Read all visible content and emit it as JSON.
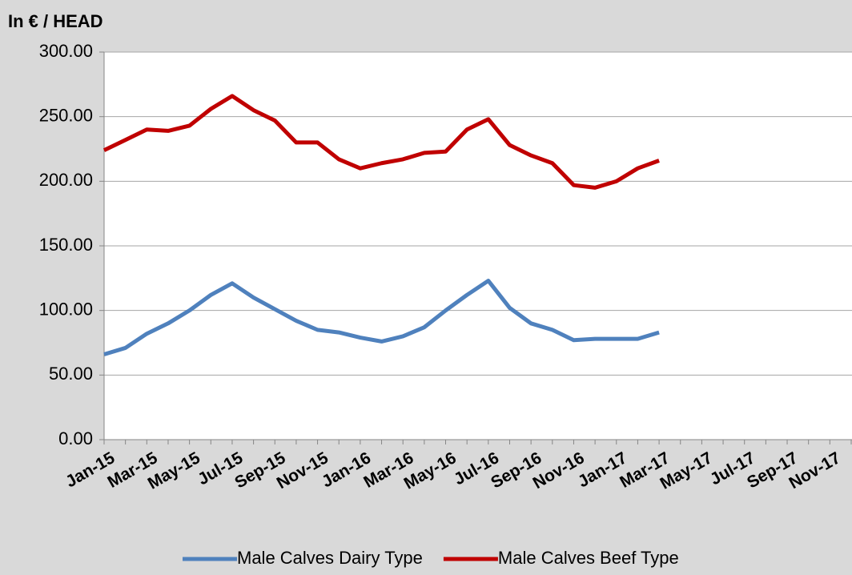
{
  "chart_data": {
    "type": "line",
    "title": "In € / HEAD",
    "categories": [
      "Jan-15",
      null,
      "Mar-15",
      null,
      "May-15",
      null,
      "Jul-15",
      null,
      "Sep-15",
      null,
      "Nov-15",
      null,
      "Jan-16",
      null,
      "Mar-16",
      null,
      "May-16",
      null,
      "Jul-16",
      null,
      "Sep-16",
      null,
      "Nov-16",
      null,
      "Jan-17",
      null,
      "Mar-17",
      null,
      "May-17",
      null,
      "Jul-17",
      null,
      "Sep-17",
      null,
      "Nov-17",
      null
    ],
    "series": [
      {
        "name": "Male Calves Dairy Type",
        "color": "#4f81bd",
        "values": [
          66,
          71,
          82,
          90,
          100,
          112,
          121,
          110,
          101,
          92,
          85,
          83,
          79,
          76,
          80,
          87,
          100,
          112,
          123,
          102,
          90,
          85,
          77,
          78,
          78,
          78,
          83,
          null,
          null,
          null,
          null,
          null,
          null,
          null,
          null,
          null
        ]
      },
      {
        "name": "Male Calves Beef Type",
        "color": "#c00000",
        "values": [
          224,
          232,
          240,
          239,
          243,
          256,
          266,
          255,
          247,
          230,
          230,
          217,
          210,
          214,
          217,
          222,
          223,
          240,
          248,
          228,
          220,
          214,
          197,
          195,
          200,
          210,
          216,
          null,
          null,
          null,
          null,
          null,
          null,
          null,
          null,
          null
        ]
      }
    ],
    "ylim": [
      0,
      300
    ],
    "yticks": [
      {
        "value": 0,
        "label": "0.00"
      },
      {
        "value": 50,
        "label": "50.00"
      },
      {
        "value": 100,
        "label": "100.00"
      },
      {
        "value": 150,
        "label": "150.00"
      },
      {
        "value": 200,
        "label": "200.00"
      },
      {
        "value": 250,
        "label": "250.00"
      },
      {
        "value": 300,
        "label": "300.00"
      }
    ],
    "grid": true,
    "legend": "bottom"
  }
}
